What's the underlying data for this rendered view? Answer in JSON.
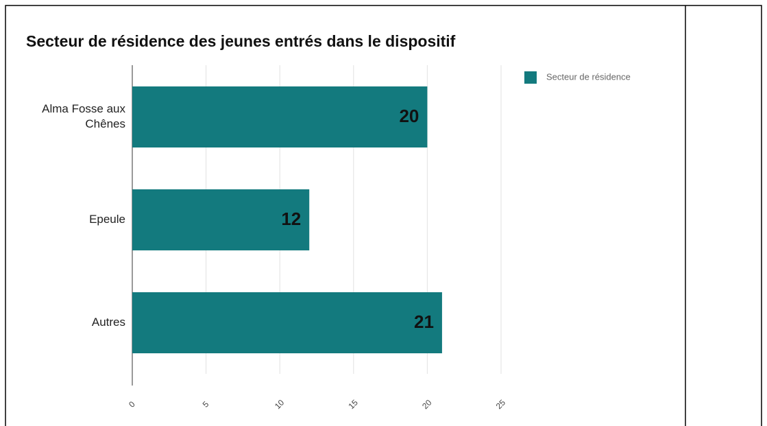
{
  "chart_data": {
    "type": "bar",
    "orientation": "horizontal",
    "title": "Secteur de résidence des jeunes entrés dans le dispositif",
    "categories": [
      "Alma Fosse aux Chênes",
      "Epeule",
      "Autres"
    ],
    "series": [
      {
        "name": "Secteur de résidence",
        "color": "#137a7e",
        "values": [
          20,
          12,
          21
        ]
      }
    ],
    "xlim": [
      0,
      25
    ],
    "xticks": [
      0,
      5,
      10,
      15,
      20,
      25
    ],
    "grid": true,
    "legend": "top-right"
  }
}
